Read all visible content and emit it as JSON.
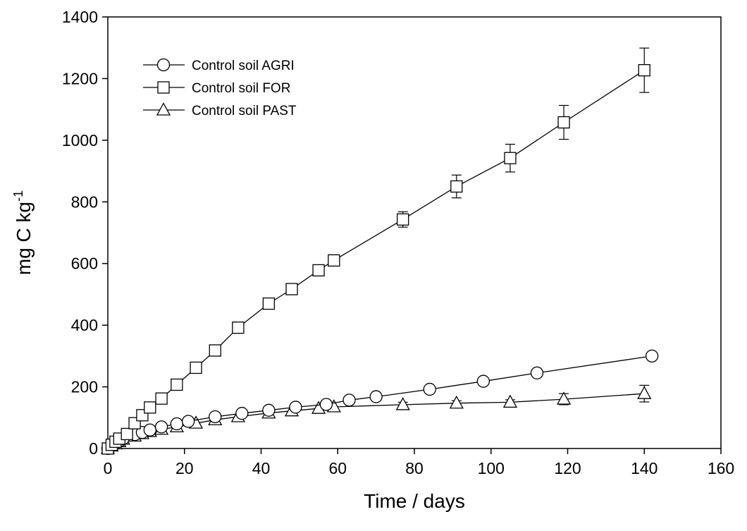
{
  "chart_data": {
    "type": "line",
    "title": "",
    "xlabel": "Time / days",
    "ylabel_main": "mg C kg",
    "ylabel_sup": "-1",
    "xlim": [
      0,
      160
    ],
    "ylim": [
      0,
      1400
    ],
    "xticks": [
      0,
      20,
      40,
      60,
      80,
      100,
      120,
      140,
      160
    ],
    "yticks": [
      0,
      200,
      400,
      600,
      800,
      1000,
      1200,
      1400
    ],
    "grid": false,
    "legend_position": "top-left",
    "series": [
      {
        "name": "Control soil AGRI",
        "marker": "circle",
        "x": [
          0,
          1,
          2,
          3,
          4,
          7,
          9,
          11,
          14,
          18,
          21,
          28,
          35,
          42,
          49,
          57,
          63,
          70,
          84,
          98,
          112,
          142
        ],
        "y": [
          0,
          9,
          17,
          24,
          32,
          45,
          52,
          60,
          70,
          80,
          88,
          103,
          114,
          124,
          134,
          143,
          157,
          168,
          192,
          218,
          245,
          300
        ],
        "err": []
      },
      {
        "name": "Control soil FOR",
        "marker": "square",
        "x": [
          0,
          1,
          2,
          3,
          5,
          7,
          9,
          11,
          14,
          18,
          23,
          28,
          34,
          42,
          48,
          55,
          59,
          77,
          91,
          105,
          119,
          140
        ],
        "y": [
          0,
          12,
          22,
          32,
          47,
          82,
          108,
          133,
          162,
          207,
          262,
          318,
          392,
          470,
          517,
          578,
          610,
          743,
          850,
          942,
          1058,
          1227
        ],
        "err": [
          0,
          0,
          0,
          0,
          0,
          0,
          0,
          0,
          0,
          0,
          0,
          0,
          0,
          0,
          0,
          15,
          18,
          25,
          37,
          45,
          55,
          72
        ]
      },
      {
        "name": "Control soil PAST",
        "marker": "triangle",
        "x": [
          0,
          1,
          2,
          3,
          4,
          7,
          9,
          11,
          14,
          18,
          23,
          28,
          34,
          42,
          48,
          55,
          59,
          77,
          91,
          105,
          119,
          140
        ],
        "y": [
          0,
          8,
          15,
          22,
          30,
          40,
          48,
          55,
          62,
          70,
          82,
          93,
          103,
          115,
          122,
          130,
          135,
          142,
          147,
          150,
          160,
          178
        ],
        "err": [
          0,
          0,
          0,
          0,
          0,
          0,
          0,
          0,
          0,
          0,
          0,
          0,
          0,
          0,
          0,
          0,
          0,
          8,
          8,
          8,
          18,
          27
        ]
      }
    ]
  }
}
